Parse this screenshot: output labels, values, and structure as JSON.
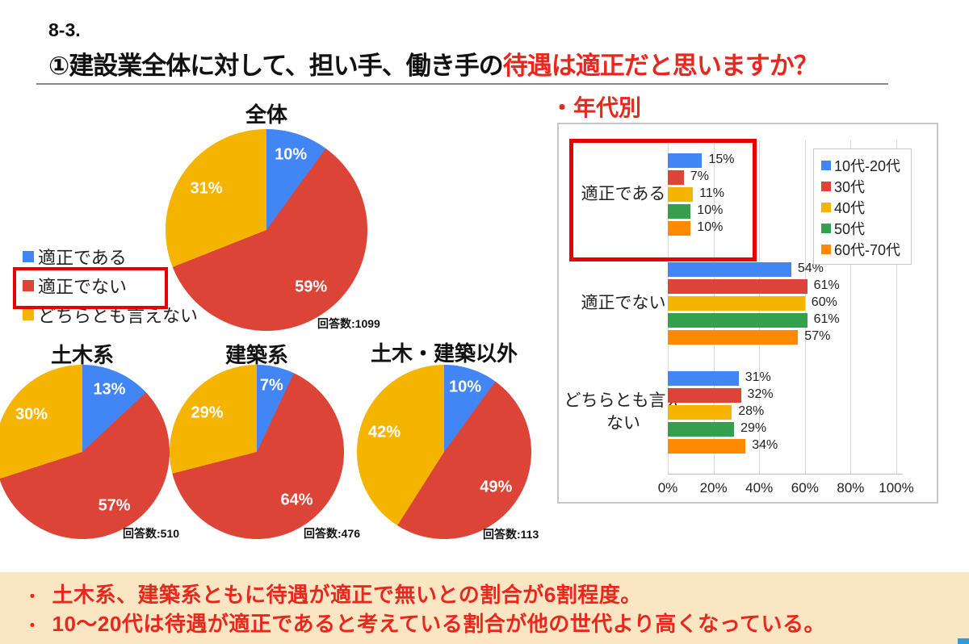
{
  "header": {
    "number": "8-3.",
    "title_black": "①建設業全体に対して、担い手、働き手の",
    "title_red": "待遇は適正だと思いますか？"
  },
  "colors": {
    "blue": "#4285F4",
    "red": "#DB4437",
    "yellow": "#F4B400",
    "green": "#34A04E",
    "orange": "#FF8A00",
    "accent_red": "#E60000",
    "text_red": "#E8281E",
    "band_bg": "#FBE6C3"
  },
  "pie_legend": {
    "items": [
      {
        "label": "適正である",
        "color": "#4285F4",
        "highlighted": false
      },
      {
        "label": "適正でない",
        "color": "#DB4437",
        "highlighted": true
      },
      {
        "label": "どちらとも言えない",
        "color": "#F4B400",
        "highlighted": false
      }
    ]
  },
  "chart_data": [
    {
      "type": "pie",
      "title": "全体",
      "labels": [
        "適正である",
        "適正でない",
        "どちらとも言えない"
      ],
      "values": [
        10,
        59,
        31
      ],
      "respondents": "回答数:1099"
    },
    {
      "type": "pie",
      "title": "土木系",
      "labels": [
        "適正である",
        "適正でない",
        "どちらとも言えない"
      ],
      "values": [
        13,
        57,
        30
      ],
      "respondents": "回答数:510"
    },
    {
      "type": "pie",
      "title": "建築系",
      "labels": [
        "適正である",
        "適正でない",
        "どちらとも言えない"
      ],
      "values": [
        7,
        64,
        29
      ],
      "respondents": "回答数:476"
    },
    {
      "type": "pie",
      "title": "土木・建築以外",
      "labels": [
        "適正である",
        "適正でない",
        "どちらとも言えない"
      ],
      "values": [
        10,
        49,
        42
      ],
      "respondents": "回答数:113"
    },
    {
      "type": "bar",
      "title": "・年代別",
      "orientation": "horizontal",
      "categories": [
        "適正である",
        "適正でない",
        "どちらとも言えない"
      ],
      "series": [
        {
          "name": "10代-20代",
          "values": [
            15,
            54,
            31
          ]
        },
        {
          "name": "30代",
          "values": [
            7,
            61,
            32
          ]
        },
        {
          "name": "40代",
          "values": [
            11,
            60,
            28
          ]
        },
        {
          "name": "50代",
          "values": [
            10,
            61,
            29
          ]
        },
        {
          "name": "60代-70代",
          "values": [
            10,
            57,
            34
          ]
        }
      ],
      "xticks": [
        "0%",
        "20%",
        "40%",
        "60%",
        "80%",
        "100%"
      ],
      "xlim": [
        0,
        100
      ],
      "grid": true,
      "legend_position": "top-right",
      "highlight_note": "適正である group enclosed in red box"
    }
  ],
  "footer": {
    "marker": "・",
    "bullets": [
      "土木系、建築系ともに待遇が適正で無いとの割合が6割程度。",
      "10〜20代は待遇が適正であると考えている割合が他の世代より高くなっている。"
    ]
  }
}
